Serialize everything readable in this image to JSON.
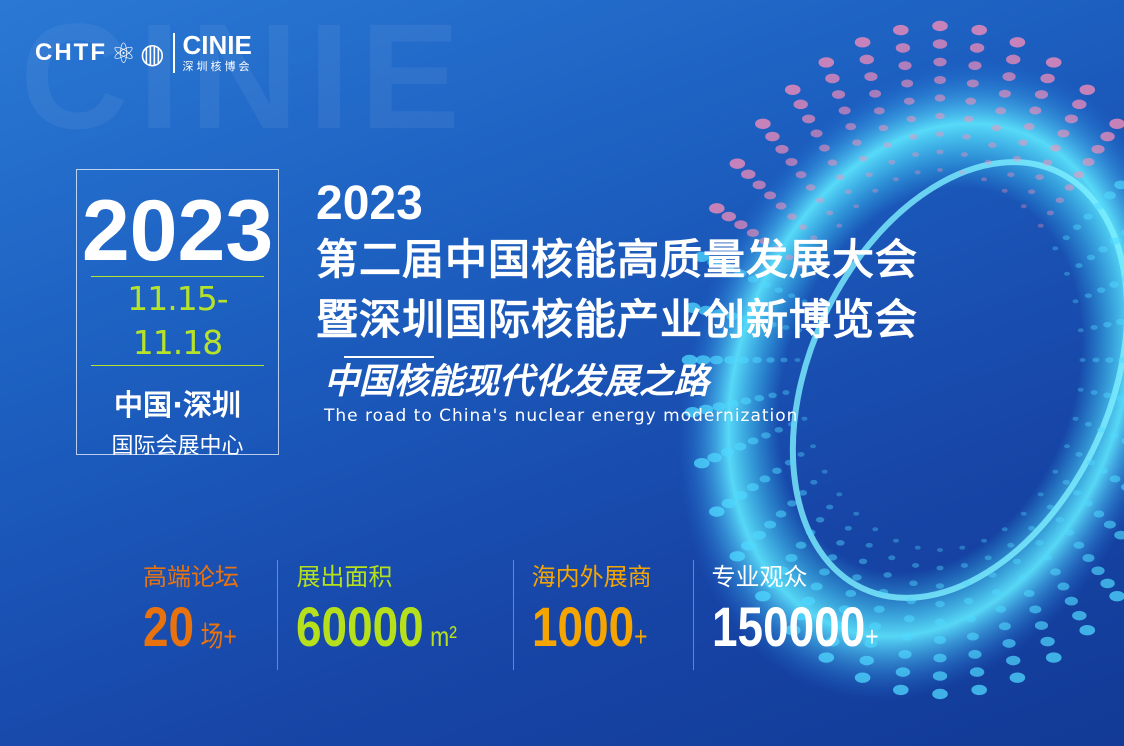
{
  "background_word": "CINIE",
  "logo": {
    "chtf": "CHTF",
    "cinie": "CINIE",
    "cinie_cn": "深圳核博会"
  },
  "datebox": {
    "year": "2023",
    "dates": "11.15-11.18",
    "city": "中国·深圳",
    "venue": "国际会展中心"
  },
  "title": {
    "year": "2023",
    "line1": "第二届中国核能高质量发展大会",
    "line2": "暨深圳国际核能产业创新博览会",
    "slogan": "中国核能现代化发展之路",
    "slogan_en": "The road  to China's nuclear energy modernization"
  },
  "stats": [
    {
      "label": "高端论坛",
      "value": "20",
      "unit": " 场+",
      "color": "#e8730e"
    },
    {
      "label": "展出面积",
      "value": "60000",
      "unit": " m²",
      "color": "#b6e01c"
    },
    {
      "label": "海内外展商",
      "value": "1000",
      "unit": "+",
      "color": "#f5a500"
    },
    {
      "label": "专业观众",
      "value": "150000",
      "unit": "+",
      "color": "#ffffff"
    }
  ]
}
